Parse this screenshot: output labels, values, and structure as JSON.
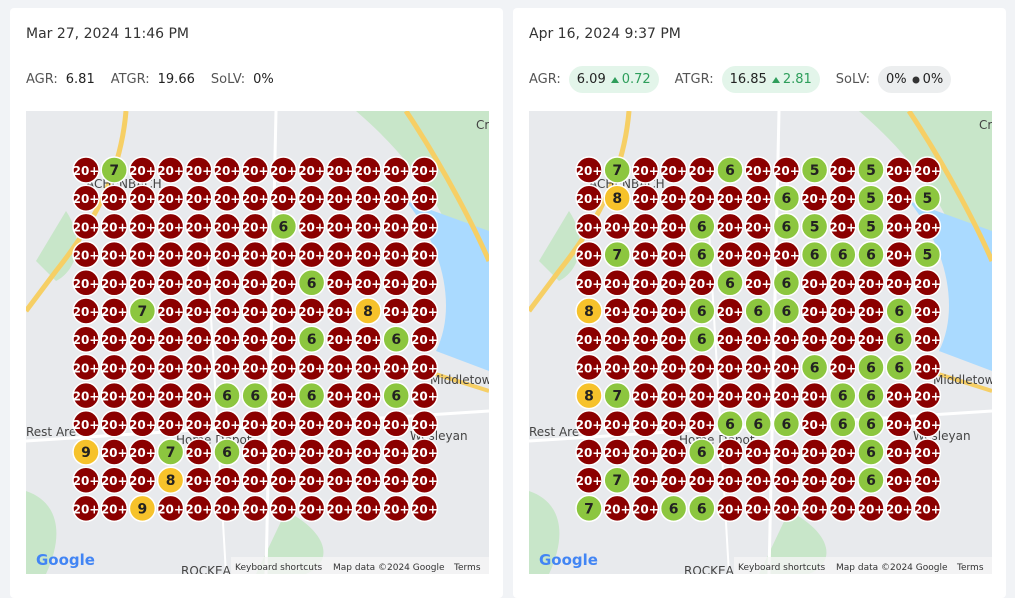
{
  "panels": [
    {
      "date": "Mar 27, 2024 11:46 PM",
      "metrics": [
        {
          "label": "AGR:",
          "value": 6.81
        },
        {
          "label": "ATGR:",
          "value": 19.66
        },
        {
          "label": "SoLV:",
          "value": "0%"
        }
      ],
      "grid": [
        [
          "20+",
          7,
          "20+",
          "20+",
          "20+",
          "20+",
          "20+",
          "20+",
          "20+",
          "20+",
          "20+",
          "20+",
          "20+"
        ],
        [
          "20+",
          "20+",
          "20+",
          "20+",
          "20+",
          "20+",
          "20+",
          "20+",
          "20+",
          "20+",
          "20+",
          "20+",
          "20+"
        ],
        [
          "20+",
          "20+",
          "20+",
          "20+",
          "20+",
          "20+",
          "20+",
          6,
          "20+",
          "20+",
          "20+",
          "20+",
          "20+"
        ],
        [
          "20+",
          "20+",
          "20+",
          "20+",
          "20+",
          "20+",
          "20+",
          "20+",
          "20+",
          "20+",
          "20+",
          "20+",
          "20+"
        ],
        [
          "20+",
          "20+",
          "20+",
          "20+",
          "20+",
          "20+",
          "20+",
          "20+",
          6,
          "20+",
          "20+",
          "20+",
          "20+"
        ],
        [
          "20+",
          "20+",
          7,
          "20+",
          "20+",
          "20+",
          "20+",
          "20+",
          "20+",
          "20+",
          8,
          "20+",
          "20+"
        ],
        [
          "20+",
          "20+",
          "20+",
          "20+",
          "20+",
          "20+",
          "20+",
          "20+",
          6,
          "20+",
          "20+",
          6,
          "20+"
        ],
        [
          "20+",
          "20+",
          "20+",
          "20+",
          "20+",
          "20+",
          "20+",
          "20+",
          "20+",
          "20+",
          "20+",
          "20+",
          "20+"
        ],
        [
          "20+",
          "20+",
          "20+",
          "20+",
          "20+",
          6,
          6,
          "20+",
          6,
          "20+",
          "20+",
          6,
          "20+"
        ],
        [
          "20+",
          "20+",
          "20+",
          "20+",
          "20+",
          "20+",
          "20+",
          "20+",
          "20+",
          "20+",
          "20+",
          "20+",
          "20+"
        ],
        [
          9,
          "20+",
          "20+",
          7,
          "20+",
          6,
          "20+",
          "20+",
          "20+",
          "20+",
          "20+",
          "20+",
          "20+"
        ],
        [
          "20+",
          "20+",
          "20+",
          8,
          "20+",
          "20+",
          "20+",
          "20+",
          "20+",
          "20+",
          "20+",
          "20+",
          "20+"
        ],
        [
          "20+",
          "20+",
          9,
          "20+",
          "20+",
          "20+",
          "20+",
          "20+",
          "20+",
          "20+",
          "20+",
          "20+",
          "20+"
        ]
      ]
    },
    {
      "date": "Apr 16, 2024 9:37 PM",
      "metrics": [
        {
          "label": "AGR:",
          "value": 6.09,
          "delta": 0.72
        },
        {
          "label": "ATGR:",
          "value": 16.85,
          "delta": 2.81
        },
        {
          "label": "SoLV:",
          "value": "0%",
          "delta": "0%"
        }
      ],
      "grid": [
        [
          "20+",
          7,
          "20+",
          "20+",
          "20+",
          6,
          "20+",
          "20+",
          5,
          "20+",
          5,
          "20+",
          "20+"
        ],
        [
          "20+",
          8,
          "20+",
          "20+",
          "20+",
          "20+",
          "20+",
          6,
          "20+",
          "20+",
          5,
          "20+",
          5
        ],
        [
          "20+",
          "20+",
          "20+",
          "20+",
          6,
          "20+",
          "20+",
          6,
          5,
          "20+",
          5,
          "20+",
          "20+"
        ],
        [
          "20+",
          7,
          "20+",
          "20+",
          6,
          "20+",
          "20+",
          "20+",
          6,
          6,
          6,
          "20+",
          5
        ],
        [
          "20+",
          "20+",
          "20+",
          "20+",
          "20+",
          6,
          "20+",
          6,
          "20+",
          "20+",
          "20+",
          "20+",
          "20+"
        ],
        [
          8,
          "20+",
          "20+",
          "20+",
          6,
          "20+",
          6,
          6,
          "20+",
          "20+",
          "20+",
          6,
          "20+"
        ],
        [
          "20+",
          "20+",
          "20+",
          "20+",
          6,
          "20+",
          "20+",
          "20+",
          "20+",
          "20+",
          "20+",
          6,
          "20+"
        ],
        [
          "20+",
          "20+",
          "20+",
          "20+",
          "20+",
          "20+",
          "20+",
          "20+",
          6,
          "20+",
          6,
          6,
          "20+"
        ],
        [
          8,
          7,
          "20+",
          "20+",
          "20+",
          "20+",
          "20+",
          "20+",
          "20+",
          6,
          6,
          "20+",
          "20+"
        ],
        [
          "20+",
          "20+",
          "20+",
          "20+",
          "20+",
          6,
          6,
          6,
          "20+",
          6,
          6,
          "20+",
          "20+"
        ],
        [
          "20+",
          "20+",
          "20+",
          "20+",
          6,
          "20+",
          "20+",
          "20+",
          "20+",
          "20+",
          6,
          "20+",
          "20+"
        ],
        [
          "20+",
          7,
          "20+",
          "20+",
          "20+",
          "20+",
          "20+",
          "20+",
          "20+",
          "20+",
          6,
          "20+",
          "20+"
        ],
        [
          7,
          "20+",
          "20+",
          6,
          6,
          "20+",
          "20+",
          "20+",
          "20+",
          "20+",
          "20+",
          "20+",
          "20+"
        ]
      ]
    }
  ],
  "map_labels": [
    "Cro",
    "Middletow",
    "Rest Are",
    "ROCKEA",
    "ACHENBACH",
    "Wesleyan",
    "Home Depot"
  ],
  "map_footer": {
    "logo": "Google",
    "shortcuts": "Keyboard shortcuts",
    "attribution": "Map data ©2024 Google",
    "terms": "Terms"
  }
}
